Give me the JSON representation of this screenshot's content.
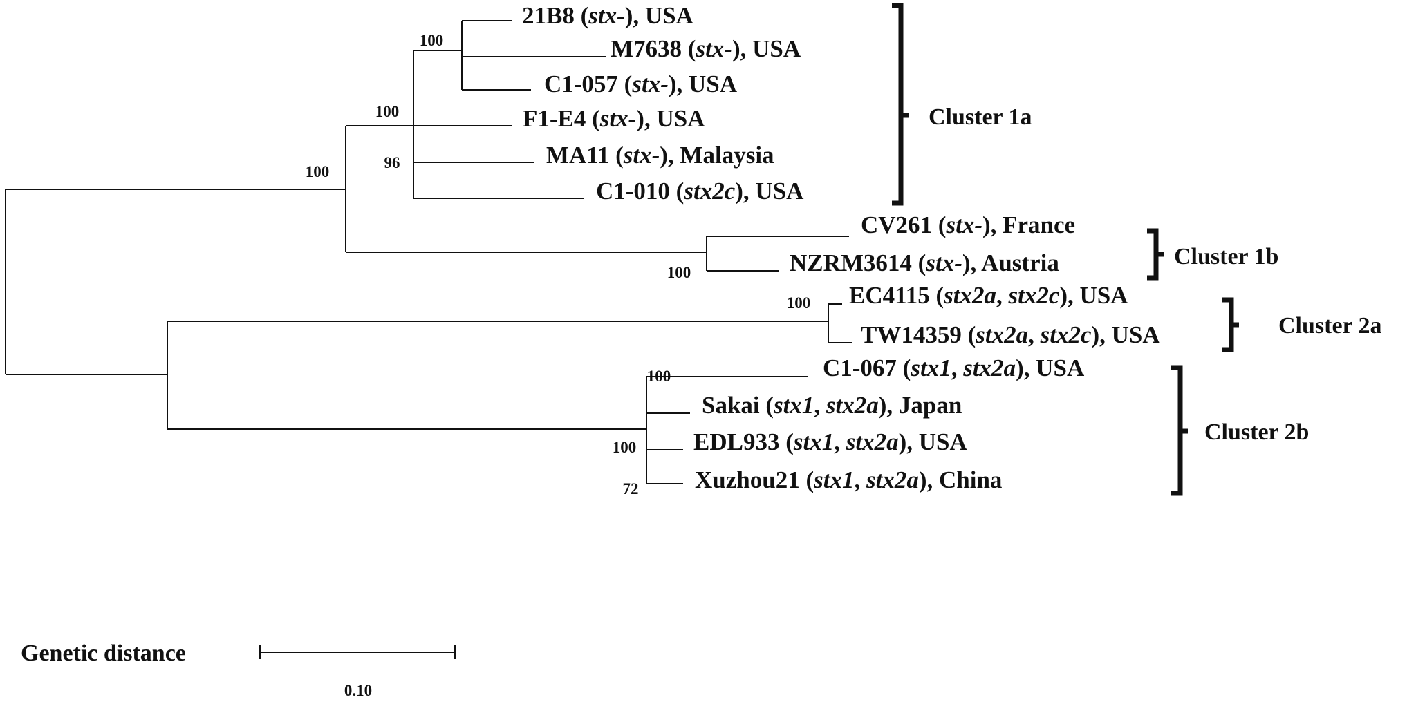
{
  "leaves": [
    {
      "id": "21B8",
      "name": "21B8 (",
      "gene": "stx-",
      "rest": "), USA"
    },
    {
      "id": "M7638",
      "name": "M7638 (",
      "gene": "stx-",
      "rest": "), USA"
    },
    {
      "id": "C1-057",
      "name": "C1-057 (",
      "gene": "stx-",
      "rest": "), USA"
    },
    {
      "id": "F1-E4",
      "name": "F1-E4 (",
      "gene": "stx-",
      "rest": "), USA"
    },
    {
      "id": "MA11",
      "name": "MA11 (",
      "gene": "stx-",
      "rest": "), Malaysia"
    },
    {
      "id": "C1-010",
      "name": "C1-010 (",
      "gene": "stx2c",
      "rest": "), USA"
    },
    {
      "id": "CV261",
      "name": "CV261 (",
      "gene": "stx-",
      "rest": "), France"
    },
    {
      "id": "NZRM3614",
      "name": "NZRM3614 (",
      "gene": "stx-",
      "rest": "), Austria"
    },
    {
      "id": "EC4115",
      "name": "EC4115 (",
      "gene": "stx2a",
      "rest": "), USA",
      "mid": ", ",
      "gene2": "stx2c"
    },
    {
      "id": "TW14359",
      "name": "TW14359 (",
      "gene": "stx2a",
      "rest": "), USA",
      "mid": ", ",
      "gene2": "stx2c"
    },
    {
      "id": "C1-067",
      "name": "C1-067 (",
      "gene": "stx1",
      "rest": "), USA",
      "mid": ", ",
      "gene2": "stx2a"
    },
    {
      "id": "Sakai",
      "name": "Sakai (",
      "gene": "stx1",
      "rest": "), Japan",
      "mid": ", ",
      "gene2": "stx2a"
    },
    {
      "id": "EDL933",
      "name": "EDL933 (",
      "gene": "stx1",
      "rest": "), USA",
      "mid": ", ",
      "gene2": "stx2a"
    },
    {
      "id": "Xuzhou21",
      "name": "Xuzhou21 (",
      "gene": "stx1",
      "rest": "), China",
      "mid": ", ",
      "gene2": "stx2a"
    }
  ],
  "support_values": [
    "100",
    "100",
    "96",
    "100",
    "100",
    "100",
    "100",
    "100",
    "72"
  ],
  "clusters": [
    "Cluster 1a",
    "Cluster 1b",
    "Cluster 2a",
    "Cluster 2b"
  ],
  "scale_bar": {
    "label": "Genetic distance",
    "value": "0.10"
  }
}
